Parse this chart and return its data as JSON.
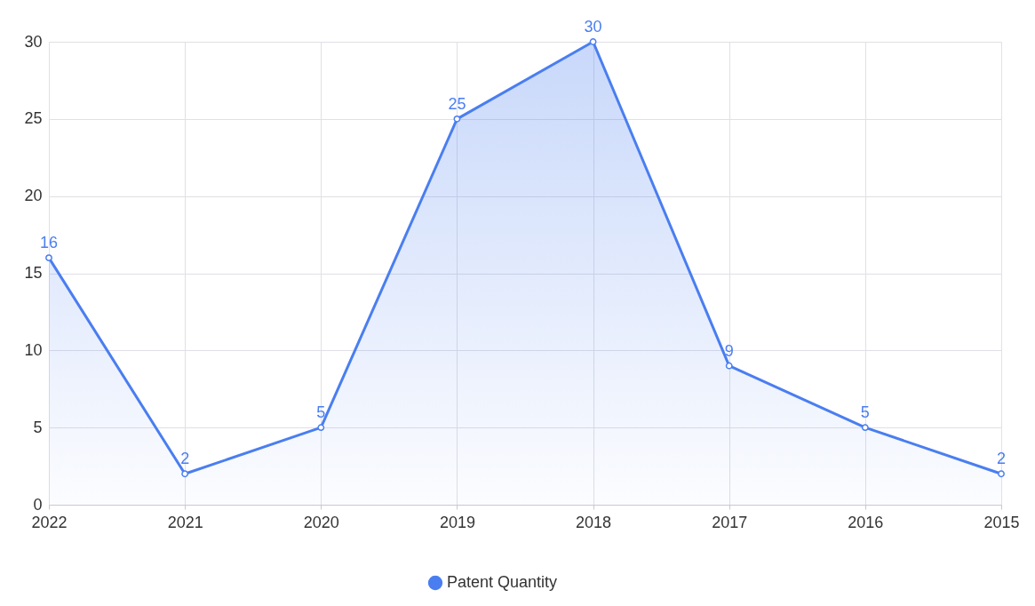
{
  "chart_data": {
    "type": "area",
    "categories": [
      "2022",
      "2021",
      "2020",
      "2019",
      "2018",
      "2017",
      "2016",
      "2015"
    ],
    "series": [
      {
        "name": "Patent Quantity",
        "color": "#4a7ef0",
        "values": [
          16,
          2,
          5,
          25,
          30,
          9,
          5,
          2
        ]
      }
    ],
    "ylim": [
      0,
      30
    ],
    "yticks": [
      0,
      5,
      10,
      15,
      20,
      25,
      30
    ],
    "grid": true,
    "legend": "bottom",
    "marker": "circle",
    "data_labels": true,
    "line_style": "solid"
  }
}
